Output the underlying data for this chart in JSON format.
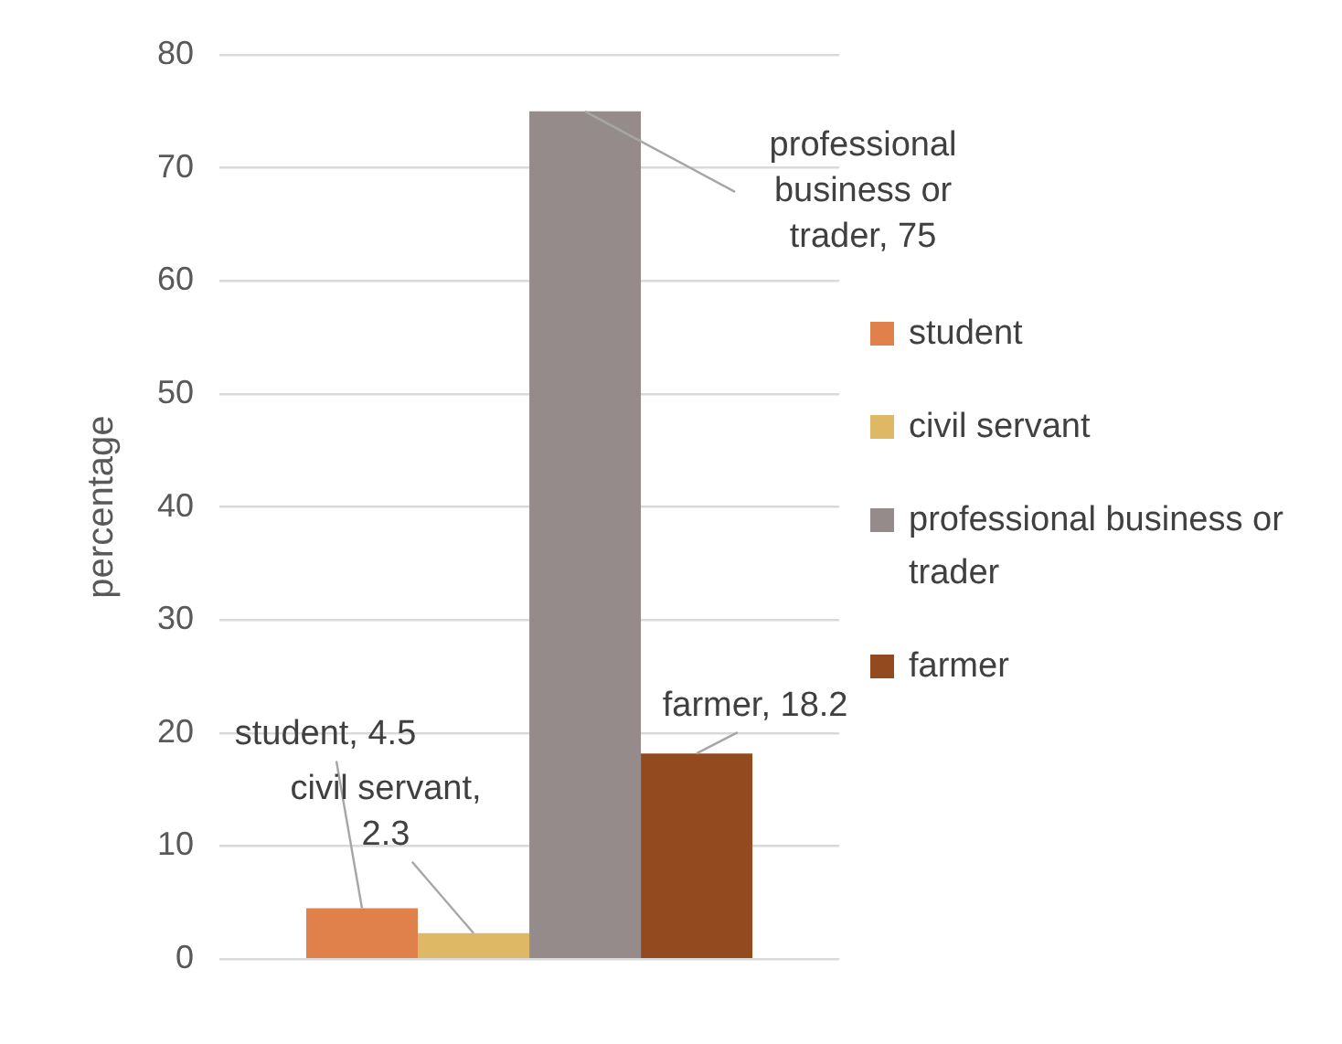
{
  "chart_data": {
    "type": "bar",
    "ylabel": "percentage",
    "categories": [
      null
    ],
    "series": [
      {
        "name": "student",
        "color": "#e0804a",
        "values": [
          4.5
        ],
        "value_labels": [
          "student, 4.5"
        ]
      },
      {
        "name": "civil servant",
        "color": "#dfb865",
        "values": [
          2.3
        ],
        "value_labels": [
          "civil servant, 2.3"
        ]
      },
      {
        "name": "professional business or trader",
        "color": "#958b8b",
        "values": [
          75
        ],
        "value_labels": [
          "professional business or trader, 75"
        ]
      },
      {
        "name": "farmer",
        "color": "#934a1e",
        "values": [
          18.2
        ],
        "value_labels": [
          "farmer, 18.2"
        ]
      }
    ],
    "ylim": [
      0,
      80
    ],
    "yticks": [
      0,
      10,
      20,
      30,
      40,
      50,
      60,
      70,
      80
    ],
    "grid": "y",
    "legend": "right"
  }
}
